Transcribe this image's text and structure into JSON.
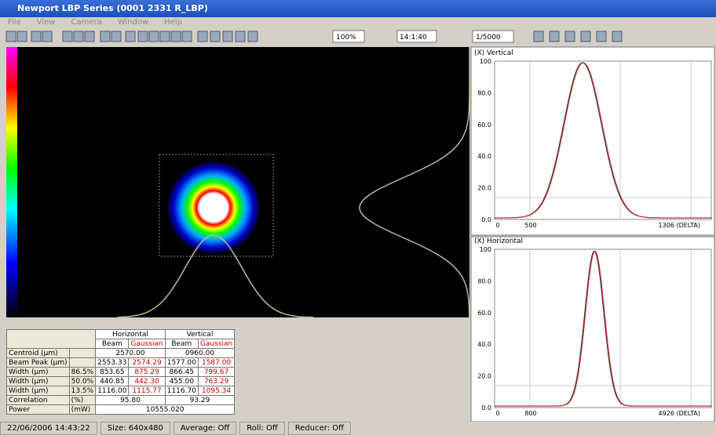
{
  "window": {
    "title": "Newport LBP Series (0001 2331 R_LBP)"
  },
  "menu": [
    "File",
    "View",
    "Camera",
    "Window",
    "Help"
  ],
  "toolbar": {
    "zoom": "100%",
    "time": "14:1:40",
    "shutter": "1/5000"
  },
  "plots": [
    {
      "title": "(X) Vertical",
      "yticks": [
        "100",
        "80.0",
        "60.0",
        "40.0",
        "20.0",
        "0.0"
      ],
      "xlabels": [
        "0",
        "500",
        "1306 (DELTA)"
      ]
    },
    {
      "title": "(X) Horizontal",
      "yticks": [
        "100",
        "80.0",
        "60.0",
        "40.0",
        "20.0",
        "0.0"
      ],
      "xlabels": [
        "0",
        "800",
        "4926 (DELTA)"
      ]
    }
  ],
  "table": {
    "groups": [
      "Horizontal",
      "Vertical"
    ],
    "sub": [
      "Beam",
      "Gaussian",
      "Beam",
      "Gaussian"
    ],
    "rows": [
      {
        "label": "Centroid (µm)",
        "unit": "",
        "cells": [
          "2570.00",
          "0960.00"
        ]
      },
      {
        "label": "Beam Peak (µm)",
        "unit": "",
        "cells": [
          "2553.33",
          "2574.29",
          "1577.00",
          "1587.00"
        ]
      },
      {
        "label": "Width (µm)",
        "unit": "86.5%",
        "cells": [
          "853.65",
          "875.29",
          "866.45",
          "799.67"
        ]
      },
      {
        "label": "Width (µm)",
        "unit": "50.0%",
        "cells": [
          "440.85",
          "442.30",
          "455.00",
          "763.29"
        ]
      },
      {
        "label": "Width (µm)",
        "unit": "13.5%",
        "cells": [
          "1116.00",
          "1115.77",
          "1116.70",
          "1095.34"
        ]
      },
      {
        "label": "Correlation",
        "unit": "(%)",
        "cells": [
          "95.80",
          "93.29"
        ]
      },
      {
        "label": "Power",
        "unit": "(mW)",
        "cells": [
          "10555.020"
        ]
      }
    ]
  },
  "status": [
    "22/06/2006 14:43:22",
    "Size: 640x480",
    "Average: Off",
    "Roll: Off",
    "Reducer: Off"
  ]
}
